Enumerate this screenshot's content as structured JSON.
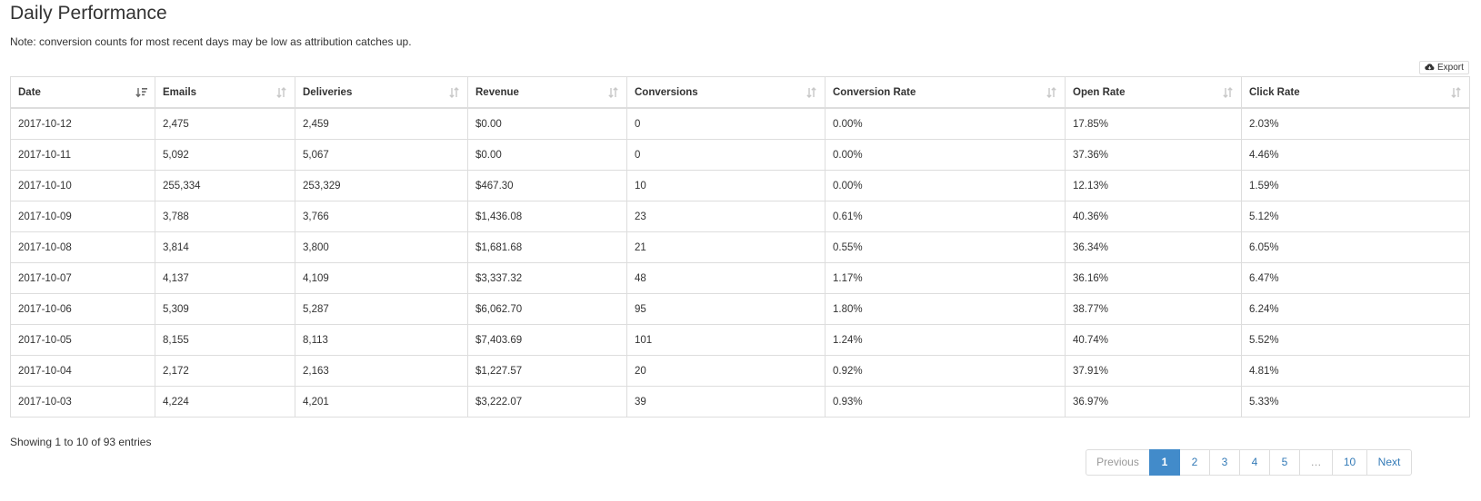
{
  "page": {
    "title": "Daily Performance",
    "note": "Note: conversion counts for most recent days may be low as attribution catches up."
  },
  "toolbar": {
    "export_label": "Export",
    "export_icon": "cloud-download-icon"
  },
  "table": {
    "columns": [
      {
        "key": "date",
        "label": "Date",
        "sort": "sorted-desc"
      },
      {
        "key": "emails",
        "label": "Emails",
        "sort": "sortable"
      },
      {
        "key": "deliveries",
        "label": "Deliveries",
        "sort": "sortable"
      },
      {
        "key": "revenue",
        "label": "Revenue",
        "sort": "sortable"
      },
      {
        "key": "conversions",
        "label": "Conversions",
        "sort": "sortable"
      },
      {
        "key": "conversion_rate",
        "label": "Conversion Rate",
        "sort": "sortable"
      },
      {
        "key": "open_rate",
        "label": "Open Rate",
        "sort": "sortable"
      },
      {
        "key": "click_rate",
        "label": "Click Rate",
        "sort": "sortable"
      }
    ],
    "rows": [
      [
        "2017-10-12",
        "2,475",
        "2,459",
        "$0.00",
        "0",
        "0.00%",
        "17.85%",
        "2.03%"
      ],
      [
        "2017-10-11",
        "5,092",
        "5,067",
        "$0.00",
        "0",
        "0.00%",
        "37.36%",
        "4.46%"
      ],
      [
        "2017-10-10",
        "255,334",
        "253,329",
        "$467.30",
        "10",
        "0.00%",
        "12.13%",
        "1.59%"
      ],
      [
        "2017-10-09",
        "3,788",
        "3,766",
        "$1,436.08",
        "23",
        "0.61%",
        "40.36%",
        "5.12%"
      ],
      [
        "2017-10-08",
        "3,814",
        "3,800",
        "$1,681.68",
        "21",
        "0.55%",
        "36.34%",
        "6.05%"
      ],
      [
        "2017-10-07",
        "4,137",
        "4,109",
        "$3,337.32",
        "48",
        "1.17%",
        "36.16%",
        "6.47%"
      ],
      [
        "2017-10-06",
        "5,309",
        "5,287",
        "$6,062.70",
        "95",
        "1.80%",
        "38.77%",
        "6.24%"
      ],
      [
        "2017-10-05",
        "8,155",
        "8,113",
        "$7,403.69",
        "101",
        "1.24%",
        "40.74%",
        "5.52%"
      ],
      [
        "2017-10-04",
        "2,172",
        "2,163",
        "$1,227.57",
        "20",
        "0.92%",
        "37.91%",
        "4.81%"
      ],
      [
        "2017-10-03",
        "4,224",
        "4,201",
        "$3,222.07",
        "39",
        "0.93%",
        "36.97%",
        "5.33%"
      ]
    ]
  },
  "footer": {
    "info": "Showing 1 to 10 of 93 entries"
  },
  "pagination": {
    "previous": "Previous",
    "next": "Next",
    "pages": [
      "1",
      "2",
      "3",
      "4",
      "5",
      "…",
      "10"
    ],
    "active": "1"
  },
  "colors": {
    "accent": "#428bca",
    "link": "#337ab7",
    "border": "#dddddd",
    "text": "#333333",
    "muted": "#999999"
  }
}
